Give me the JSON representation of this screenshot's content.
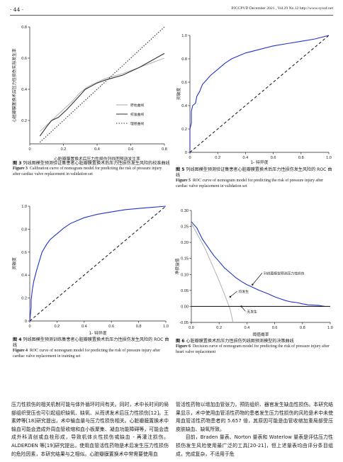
{
  "header": {
    "page_number": "· 44 ·",
    "journal_info": "PJCCPVD   December 2021 , Vol.29   No.12   http://www.syxnf.net"
  },
  "figures": {
    "fig3": {
      "ylabel": "心脏瓣膜置换术后压力性损伤实际发生率",
      "xlabel": "心脏瓣膜置换术后压力性损伤列线图预测发生率",
      "legend": [
        "原始曲线",
        "校准曲线",
        "理想曲线"
      ],
      "caption_zh_label": "图 3",
      "caption_zh": "列线图模型预测验证集患者心脏瓣膜置换术后压力性损伤发生风险的校准曲线",
      "caption_en_label": "Figure 3",
      "caption_en": "Calibration curve of nomogram model for predicting the risk of pressure injury after cardiac valve replacement in validation set"
    },
    "fig5": {
      "ylabel": "灵敏度",
      "xlabel": "1- 特异度",
      "caption_zh_label": "图 5",
      "caption_zh": "列线图模型预测验证集患者心脏瓣膜置换术后压力性损伤发生风险的 ROC 曲线",
      "caption_en_label": "Figure 5",
      "caption_en": "ROC curve of nomogram model for predicting the risk of pressure injury after cardiac valve replacement in validation set"
    },
    "fig4": {
      "ylabel": "灵敏度",
      "xlabel": "1- 特异度",
      "caption_zh_label": "图 4",
      "caption_zh": "列线图模型预测训练集患者心脏瓣膜置换术后压力性损伤发生风险的 ROC 曲线",
      "caption_en_label": "Figure 4",
      "caption_en": "ROC curve of nomogram model for predicting the risk of pressure injury after cardiac valve replacement in training set"
    },
    "fig6": {
      "ylabel": "净获益值",
      "xlabel": "阈值概率",
      "annotations": [
        "列线图模型预测压力性损伤",
        "均发生",
        "无发生"
      ],
      "caption_zh_label": "图 6",
      "caption_zh": "心脏瓣膜置换术后压力性损伤列线图预测模型的决策曲线",
      "caption_en_label": "Figure 6",
      "caption_en": "Decision curve of nomogram model for predicting the risk of pressure injury after heart valve replacement"
    }
  },
  "chart_data": [
    {
      "id": "fig3",
      "type": "line",
      "xlabel": "心脏瓣膜置换术后压力性损伤列线图预测发生率",
      "ylabel": "心脏瓣膜置换术后压力性损伤实际发生率",
      "xlim": [
        0,
        0.8
      ],
      "ylim": [
        0.05,
        0.8
      ],
      "xticks": [
        "0",
        "0.2",
        "0.4",
        "0.6",
        "0.8"
      ],
      "yticks": [
        "0.2",
        "0.4",
        "0.6",
        "0.8"
      ],
      "legend_position": "lower-right",
      "series": [
        {
          "name": "原始曲线",
          "style": "solid-light",
          "color": "#aaaaaa",
          "points": [
            [
              0.06,
              0.13
            ],
            [
              0.12,
              0.19
            ],
            [
              0.18,
              0.25
            ],
            [
              0.25,
              0.32
            ],
            [
              0.3,
              0.38
            ],
            [
              0.35,
              0.42
            ],
            [
              0.45,
              0.47
            ],
            [
              0.55,
              0.5
            ],
            [
              0.65,
              0.54
            ],
            [
              0.75,
              0.58
            ],
            [
              0.8,
              0.6
            ]
          ]
        },
        {
          "name": "校准曲线",
          "style": "solid",
          "color": "#333333",
          "points": [
            [
              0.06,
              0.1
            ],
            [
              0.1,
              0.16
            ],
            [
              0.13,
              0.2
            ],
            [
              0.17,
              0.22
            ],
            [
              0.22,
              0.27
            ],
            [
              0.28,
              0.34
            ],
            [
              0.33,
              0.4
            ],
            [
              0.4,
              0.44
            ],
            [
              0.45,
              0.46
            ],
            [
              0.55,
              0.49
            ],
            [
              0.65,
              0.54
            ],
            [
              0.75,
              0.6
            ],
            [
              0.8,
              0.63
            ]
          ]
        },
        {
          "name": "理想曲线",
          "style": "dotted",
          "color": "#333333",
          "points": [
            [
              0.06,
              0.06
            ],
            [
              0.8,
              0.8
            ]
          ]
        }
      ]
    },
    {
      "id": "fig5",
      "type": "line",
      "xlabel": "1- 特异度",
      "ylabel": "灵敏度",
      "xlim": [
        0,
        1
      ],
      "ylim": [
        0,
        1
      ],
      "xticks": [
        "0",
        "0.2",
        "0.4",
        "0.6",
        "0.8",
        "1.0"
      ],
      "yticks": [
        "0",
        "0.2",
        "0.4",
        "0.6",
        "0.8",
        "1.0"
      ],
      "series": [
        {
          "name": "",
          "style": "solid",
          "color": "#2233cc",
          "points": [
            [
              0,
              0
            ],
            [
              0,
              0.2
            ],
            [
              0.01,
              0.25
            ],
            [
              0.01,
              0.35
            ],
            [
              0.02,
              0.4
            ],
            [
              0.04,
              0.42
            ],
            [
              0.05,
              0.48
            ],
            [
              0.07,
              0.52
            ],
            [
              0.09,
              0.58
            ],
            [
              0.12,
              0.62
            ],
            [
              0.15,
              0.66
            ],
            [
              0.2,
              0.71
            ],
            [
              0.25,
              0.76
            ],
            [
              0.3,
              0.8
            ],
            [
              0.4,
              0.85
            ],
            [
              0.5,
              0.88
            ],
            [
              0.6,
              0.91
            ],
            [
              0.7,
              0.93
            ],
            [
              0.8,
              0.95
            ],
            [
              0.9,
              0.97
            ],
            [
              1.0,
              1.0
            ]
          ]
        },
        {
          "name": "",
          "style": "dashed",
          "color": "#222222",
          "points": [
            [
              0,
              0
            ],
            [
              1,
              1
            ]
          ]
        }
      ]
    },
    {
      "id": "fig4",
      "type": "line",
      "xlabel": "1- 特异度",
      "ylabel": "灵敏度",
      "xlim": [
        0,
        1
      ],
      "ylim": [
        0,
        1
      ],
      "xticks": [
        "0",
        "0.2",
        "0.4",
        "0.6",
        "0.8",
        "1.0"
      ],
      "yticks": [
        "0",
        "0.2",
        "0.4",
        "0.6",
        "0.8",
        "1.0"
      ],
      "series": [
        {
          "name": "",
          "style": "solid",
          "color": "#2233cc",
          "points": [
            [
              0,
              0
            ],
            [
              0.01,
              0.12
            ],
            [
              0.01,
              0.18
            ],
            [
              0.02,
              0.28
            ],
            [
              0.03,
              0.35
            ],
            [
              0.05,
              0.44
            ],
            [
              0.07,
              0.52
            ],
            [
              0.09,
              0.6
            ],
            [
              0.12,
              0.66
            ],
            [
              0.15,
              0.71
            ],
            [
              0.2,
              0.76
            ],
            [
              0.25,
              0.81
            ],
            [
              0.3,
              0.85
            ],
            [
              0.4,
              0.9
            ],
            [
              0.5,
              0.93
            ],
            [
              0.6,
              0.95
            ],
            [
              0.7,
              0.97
            ],
            [
              0.8,
              0.98
            ],
            [
              0.9,
              0.99
            ],
            [
              1.0,
              1.0
            ]
          ]
        },
        {
          "name": "",
          "style": "dashed",
          "color": "#222222",
          "points": [
            [
              0,
              0
            ],
            [
              1,
              1
            ]
          ]
        }
      ]
    },
    {
      "id": "fig6",
      "type": "line",
      "xlabel": "阈值概率",
      "ylabel": "净获益值",
      "xlim": [
        0,
        1
      ],
      "ylim": [
        -0.05,
        0.3
      ],
      "xticks": [
        "0.0",
        "0.2",
        "0.4",
        "0.6",
        "0.8",
        "1.0"
      ],
      "yticks": [
        "-0.05",
        "0.00",
        "0.05",
        "0.10",
        "0.15",
        "0.20",
        "0.25",
        "0.30"
      ],
      "series": [
        {
          "name": "列线图模型预测压力性损伤",
          "style": "solid",
          "color": "#2233cc",
          "points": [
            [
              0.0,
              0.265
            ],
            [
              0.04,
              0.245
            ],
            [
              0.08,
              0.21
            ],
            [
              0.12,
              0.185
            ],
            [
              0.16,
              0.16
            ],
            [
              0.2,
              0.14
            ],
            [
              0.24,
              0.12
            ],
            [
              0.28,
              0.105
            ],
            [
              0.32,
              0.09
            ],
            [
              0.36,
              0.078
            ],
            [
              0.4,
              0.068
            ],
            [
              0.44,
              0.06
            ],
            [
              0.48,
              0.052
            ],
            [
              0.52,
              0.045
            ],
            [
              0.56,
              0.038
            ],
            [
              0.6,
              0.03
            ],
            [
              0.64,
              0.024
            ],
            [
              0.68,
              0.018
            ],
            [
              0.72,
              0.014
            ],
            [
              0.76,
              0.012
            ],
            [
              0.8,
              0.008
            ],
            [
              0.84,
              0.005
            ],
            [
              0.88,
              0.004
            ],
            [
              0.92,
              0.003
            ],
            [
              0.96,
              0.0
            ]
          ]
        },
        {
          "name": "均发生",
          "style": "solid-light",
          "color": "#aaaaaa",
          "points": [
            [
              0.0,
              0.26
            ],
            [
              0.05,
              0.22
            ],
            [
              0.1,
              0.18
            ],
            [
              0.15,
              0.13
            ],
            [
              0.2,
              0.08
            ],
            [
              0.25,
              0.025
            ],
            [
              0.28,
              -0.01
            ],
            [
              0.3,
              -0.05
            ]
          ]
        },
        {
          "name": "无发生",
          "style": "solid",
          "color": "#222222",
          "points": [
            [
              0,
              0
            ],
            [
              1,
              0
            ]
          ]
        }
      ]
    }
  ],
  "body": {
    "left_paragraph": "压力性损伤的相关机制可能与体外循环时间有关。同时，术中长时间的局部组织受压也可引起组织缺氧、缺氧、从而诱发术后压力性损伤[12]。王素婷等[18]研究提出，术中输血量与压力性损伤相关。心脏瓣膜置换术中输血可能会造成外周血管收缩和血小板聚集、凝血功能障碍等，可能会造成外科清创或血栓形成，导致机体炎性损伤或缺血 - 再灌注损伤。ALDERDEN 等[19]研究提出，使用血管活性药物是术后发生压力性损伤的危险因素，本研究结果与之相似。心脏瓣膜置换术中常需要使用血",
    "right_paragraph_1": "管活性药物以增加血管张力，预防组织、器官发生缺血性损伤。本研究结果显示，术中使用血管活性药物的患者发生压力性损伤的风险是术中未使用血管活性药物患者的 5.657 倍，其原因可能是血管收缩加重局部受压皮肤缺血、缺氧所致。",
    "right_paragraph_2": "目前，Braden 量表、Norton 量表和 Waterlow 量表是评估压力性损伤发生风险使用最广泛的工具[20-21]，但上述量表均由评分条目组成，完成复杂，不适用于危"
  }
}
